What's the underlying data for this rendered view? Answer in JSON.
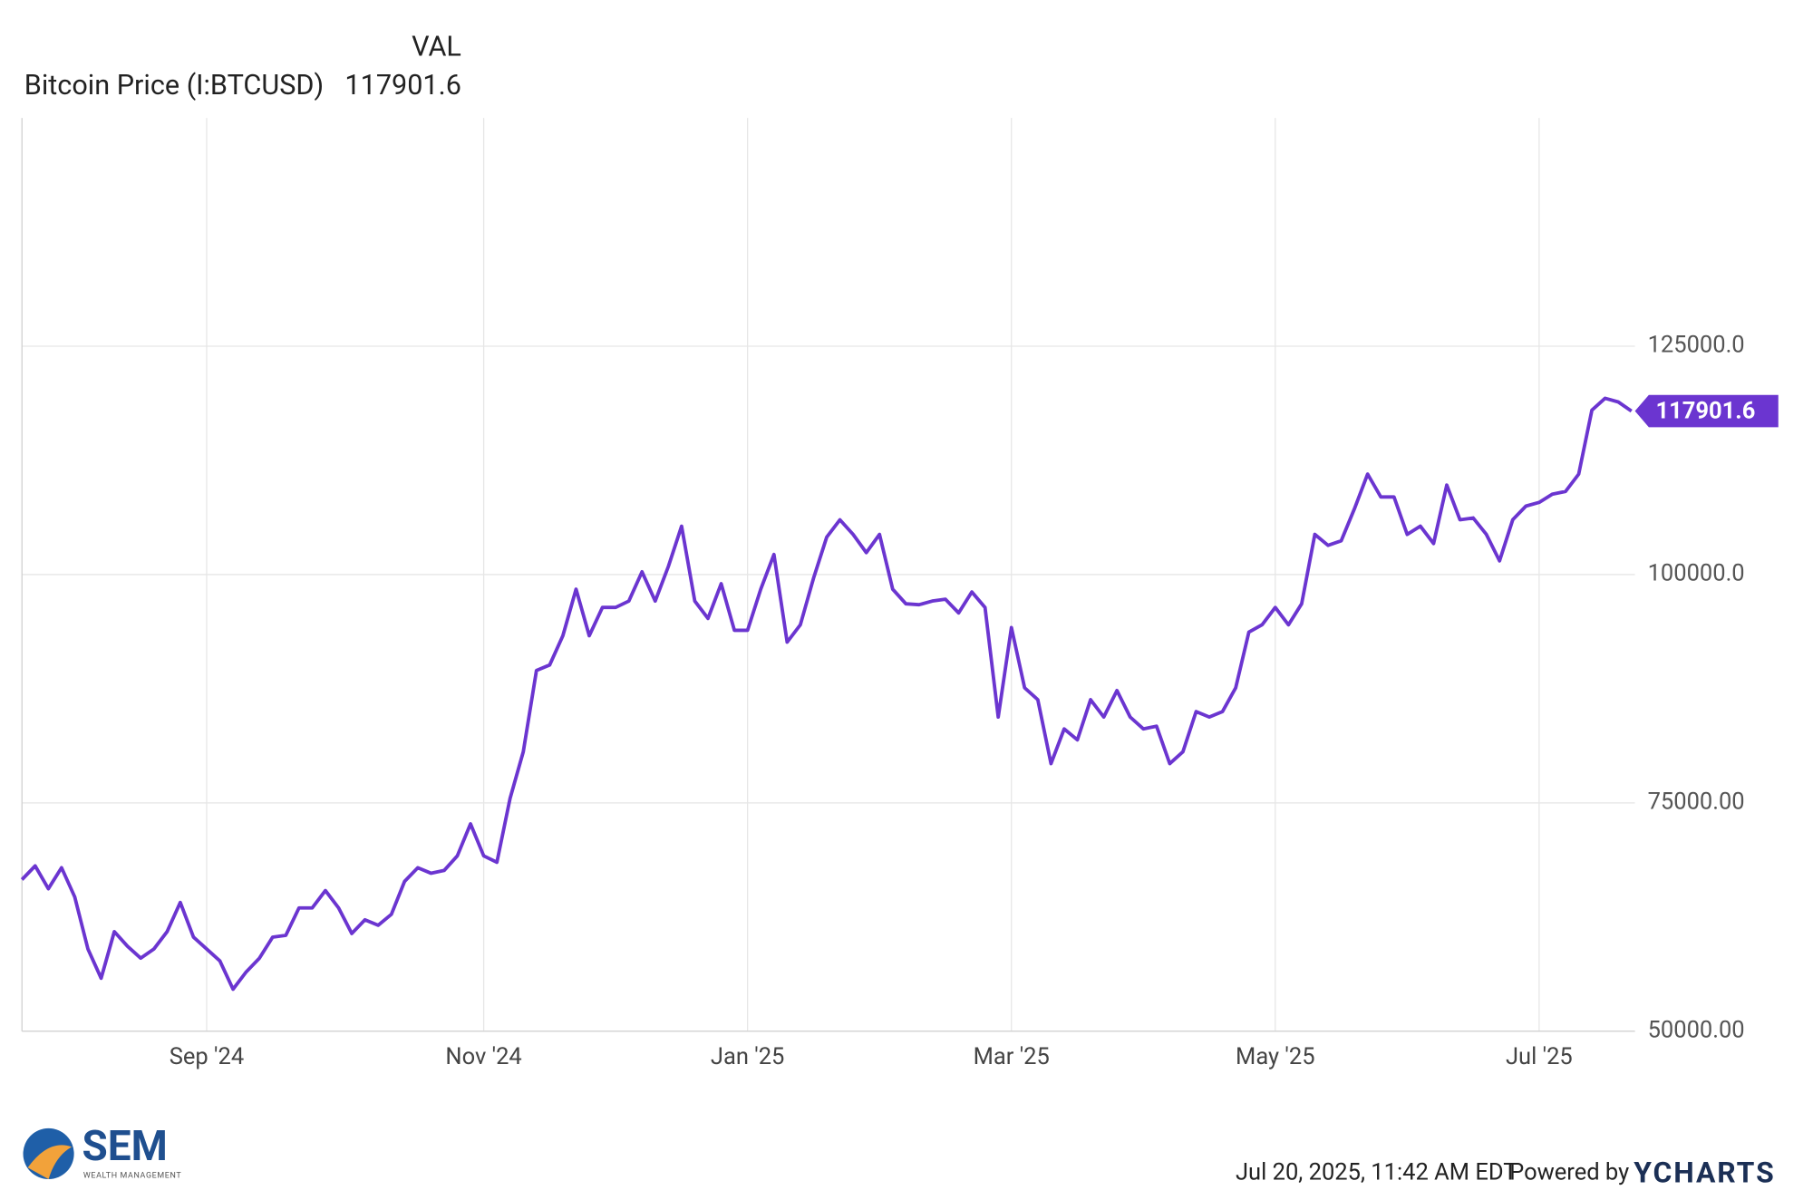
{
  "chart_data": {
    "type": "line",
    "legend_header": "VAL",
    "categories": [
      null,
      null,
      null,
      null,
      null,
      null,
      null,
      null,
      null,
      null,
      null,
      null,
      null,
      null,
      "Sep '24",
      null,
      null,
      null,
      null,
      null,
      null,
      null,
      null,
      null,
      null,
      null,
      null,
      null,
      null,
      null,
      null,
      null,
      null,
      null,
      null,
      "Nov '24",
      null,
      null,
      null,
      null,
      null,
      null,
      null,
      null,
      null,
      null,
      null,
      null,
      null,
      null,
      null,
      null,
      null,
      null,
      null,
      "Jan '25",
      null,
      null,
      null,
      null,
      null,
      null,
      null,
      null,
      null,
      null,
      null,
      null,
      null,
      null,
      null,
      null,
      null,
      null,
      null,
      "Mar '25",
      null,
      null,
      null,
      null,
      null,
      null,
      null,
      null,
      null,
      null,
      null,
      null,
      null,
      null,
      null,
      null,
      null,
      null,
      null,
      "May '25",
      null,
      null,
      null,
      null,
      null,
      null,
      null,
      null,
      null,
      null,
      null,
      null,
      null,
      null,
      null,
      null,
      null,
      null,
      null,
      "Jul '25",
      null,
      null,
      null,
      null,
      null,
      null,
      null
    ],
    "series": [
      {
        "name": "Bitcoin Price (I:BTCUSD)",
        "color": "#6b35d0",
        "values": [
          66600,
          68100,
          65600,
          67900,
          64700,
          59000,
          55800,
          60900,
          59300,
          58000,
          59000,
          60900,
          64100,
          60300,
          59000,
          57700,
          54600,
          56500,
          58000,
          60300,
          60500,
          63500,
          63500,
          65400,
          63500,
          60700,
          62200,
          61600,
          62800,
          66400,
          67900,
          67300,
          67600,
          69200,
          72700,
          69200,
          68500,
          75500,
          80600,
          89500,
          90100,
          93300,
          98400,
          93300,
          96400,
          96400,
          97100,
          100300,
          97100,
          100900,
          105300,
          97100,
          95200,
          99000,
          93900,
          93900,
          98400,
          102200,
          92600,
          94500,
          99600,
          104100,
          106000,
          104400,
          102400,
          104400,
          98400,
          96800,
          96700,
          97100,
          97300,
          95800,
          98100,
          96400,
          84400,
          94200,
          87600,
          86300,
          79300,
          83100,
          81900,
          86300,
          84400,
          87300,
          84400,
          83100,
          83400,
          79300,
          80600,
          85000,
          84400,
          85000,
          87600,
          93700,
          94500,
          96400,
          94500,
          96800,
          104400,
          103200,
          103700,
          107200,
          111000,
          108500,
          108500,
          104400,
          105300,
          103400,
          109800,
          106000,
          106200,
          104400,
          101500,
          106000,
          107500,
          107900,
          108800,
          109100,
          111000,
          118000,
          119300,
          118900,
          117901.6
        ]
      }
    ],
    "ylim": [
      50000,
      150000
    ],
    "yticks": [
      {
        "value": 50000,
        "label": "50000.00"
      },
      {
        "value": 75000,
        "label": "75000.00"
      },
      {
        "value": 100000,
        "label": "100000.0"
      },
      {
        "value": 125000,
        "label": "125000.0"
      }
    ],
    "grid": true
  },
  "footer": {
    "timestamp": "Jul 20, 2025, 11:42 AM EDT",
    "powered_by": "Powered by",
    "brand": "YCHARTS",
    "logo": {
      "name": "SEM",
      "tagline": "WEALTH MANAGEMENT"
    }
  }
}
